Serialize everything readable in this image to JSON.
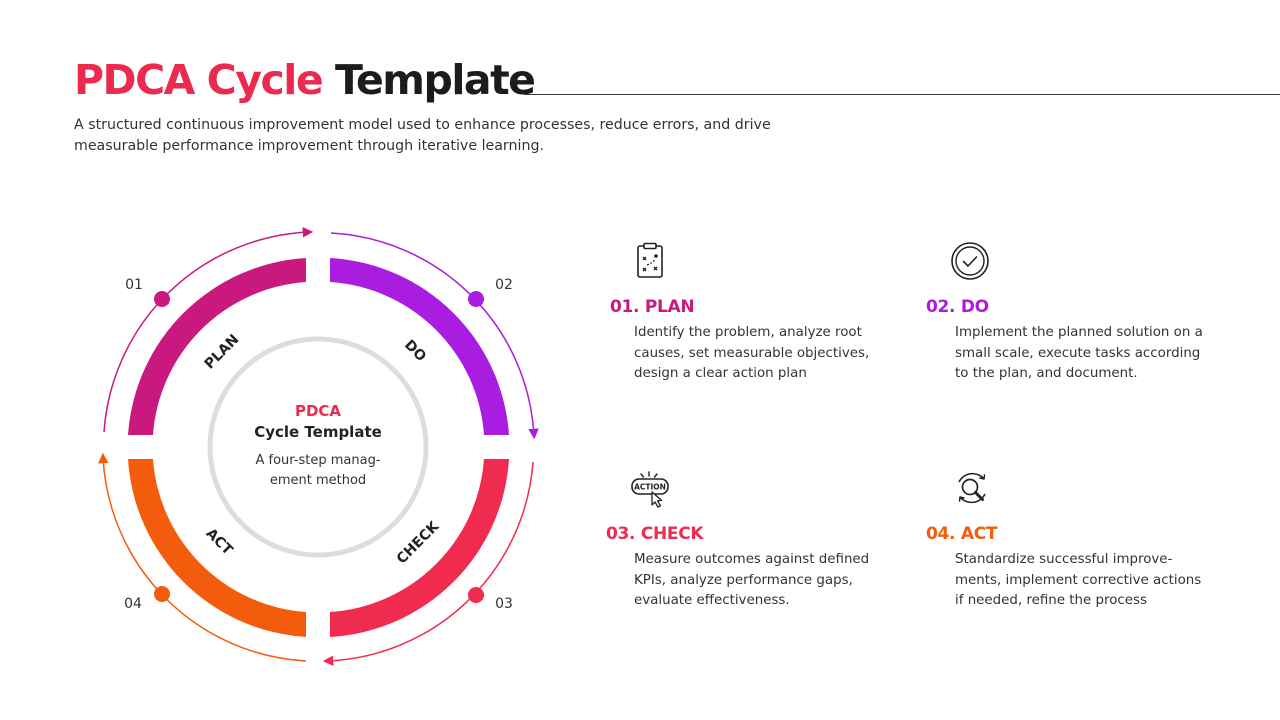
{
  "header": {
    "title_accent": "PDCA Cycle",
    "title_rest": "Template",
    "subtitle": "A structured continuous improvement model used to enhance processes, reduce errors, and drive measurable performance improvement through iterative learning."
  },
  "colors": {
    "plan": "#c9197f",
    "do": "#a91de0",
    "check": "#f02b50",
    "act": "#f35c0d",
    "title_accent": "#ea2a4e",
    "ring": "#dddddd"
  },
  "cycle": {
    "center_title_accent": "PDCA",
    "center_title": "Cycle Template",
    "center_desc_line1": "A four-step manag-",
    "center_desc_line2": "ement method",
    "segments": [
      {
        "number": "01",
        "label": "PLAN"
      },
      {
        "number": "02",
        "label": "DO"
      },
      {
        "number": "03",
        "label": "CHECK"
      },
      {
        "number": "04",
        "label": "ACT"
      }
    ]
  },
  "steps": [
    {
      "heading": "01. PLAN",
      "icon": "clipboard-strategy-icon",
      "description": "Identify the problem, analyze root causes, set measurable objectives, design a clear action plan"
    },
    {
      "heading": "02. DO",
      "icon": "check-circle-icon",
      "description": "Implement the planned solution on a small scale, execute tasks according to the plan, and document."
    },
    {
      "heading": "03. CHECK",
      "icon": "action-button-icon",
      "description": "Measure outcomes against defined KPIs, analyze performance gaps, evaluate effectiveness."
    },
    {
      "heading": "04. ACT",
      "icon": "search-refresh-icon",
      "description": "Standardize successful improve-ments, implement corrective actions if needed, refine the process"
    }
  ]
}
